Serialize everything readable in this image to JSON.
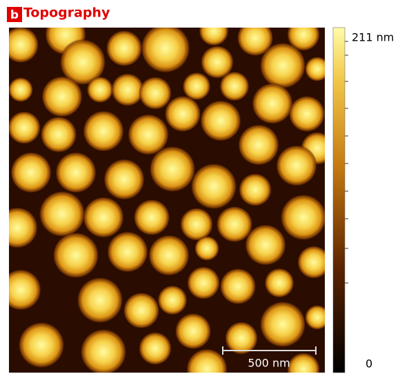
{
  "panel": {
    "label": "b",
    "title": "Topography"
  },
  "colorbar": {
    "max_label": "211 nm",
    "min_label": "0"
  },
  "scale_bar": {
    "label": "500 nm"
  }
}
